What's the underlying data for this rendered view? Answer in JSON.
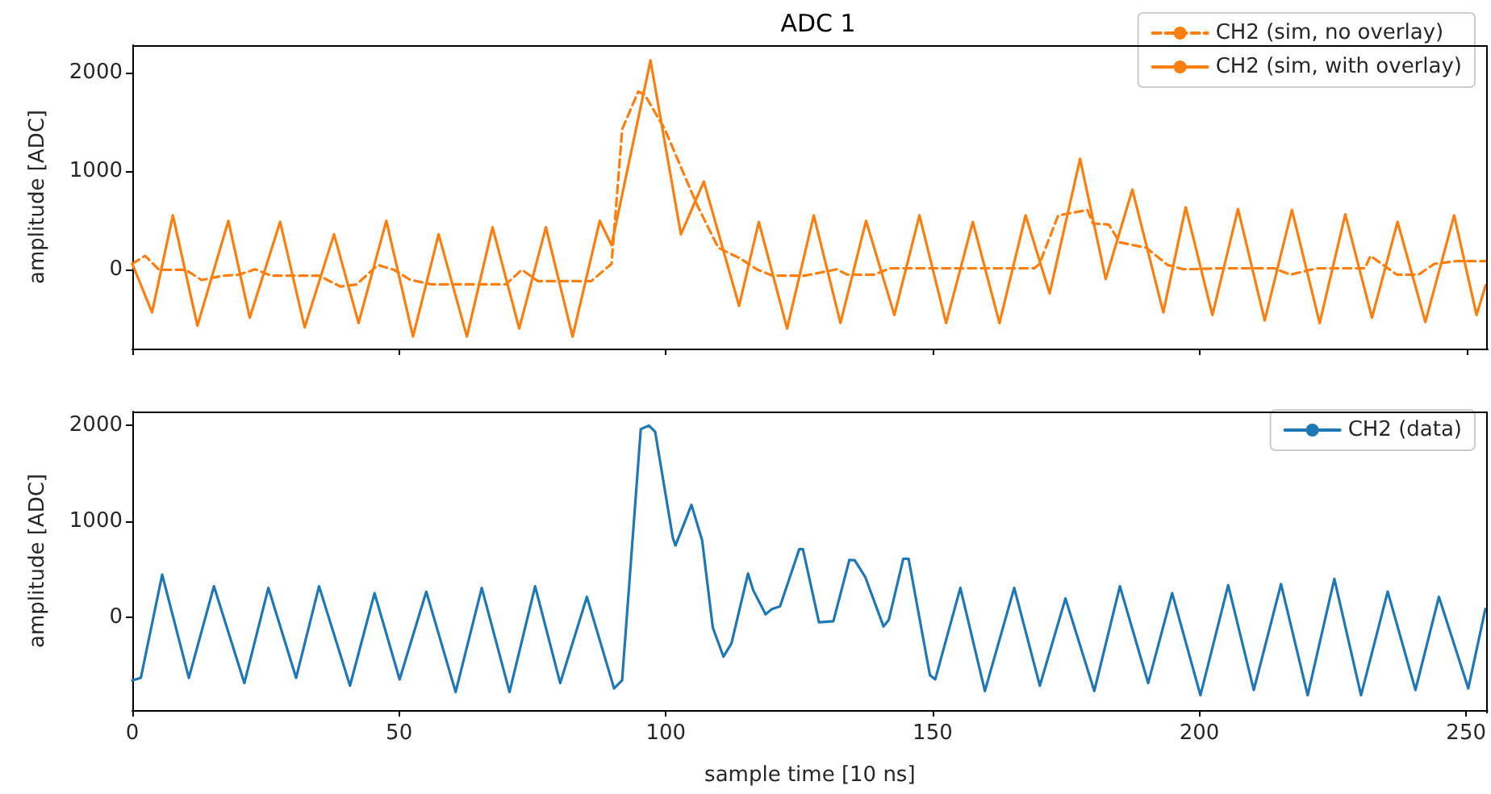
{
  "chart_data": [
    {
      "type": "line",
      "title": "ADC 1",
      "ylabel": "amplitude [ADC]",
      "xlim": [
        0,
        254
      ],
      "xticks": [
        0,
        50,
        100,
        150,
        200,
        250
      ],
      "ylim": [
        -800,
        2280
      ],
      "yticks": [
        0,
        1000,
        2000
      ],
      "tick_labels": "y",
      "legend": "top right",
      "grid": false,
      "series": [
        {
          "name": "CH2 (sim, no overlay)",
          "color": "#ff7f0e",
          "line_style": "dashed",
          "x": [
            0,
            2.4,
            5,
            10,
            13,
            17,
            20,
            23,
            26,
            35,
            39,
            42,
            46,
            49,
            52,
            56,
            70,
            73,
            76,
            86,
            89.8,
            91.8,
            94.8,
            96,
            99.8,
            105.8,
            109.8,
            113.9,
            117,
            120,
            126,
            132,
            134,
            139,
            142,
            169,
            170,
            173.5,
            179,
            180,
            183,
            185,
            190,
            194,
            197,
            204,
            214,
            217,
            222,
            231,
            232,
            237,
            241,
            244,
            248,
            253.6
          ],
          "values": [
            60,
            142,
            0,
            0,
            -104,
            -60,
            -50,
            5,
            -60,
            -60,
            -170,
            -150,
            49,
            0,
            -100,
            -148,
            -148,
            0,
            -115,
            -115,
            60,
            1426,
            1809,
            1780,
            1426,
            661,
            224,
            115,
            5,
            -60,
            -60,
            5,
            -50,
            -50,
            15,
            15,
            60,
            552,
            607,
            470,
            459,
            279,
            224,
            49,
            5,
            15,
            15,
            -50,
            15,
            15,
            142,
            -50,
            -50,
            60,
            87,
            87
          ]
        },
        {
          "name": "CH2 (sim, with overlay)",
          "color": "#ff7f0e",
          "line_style": "solid",
          "x": [
            0,
            3.7,
            7.6,
            12.2,
            18,
            22,
            27.7,
            32.3,
            37.8,
            42.4,
            47.6,
            52.6,
            57.4,
            62.7,
            67.5,
            72.5,
            77.5,
            82.5,
            87.6,
            89.8,
            97.1,
            102.8,
            107.1,
            113.7,
            117.4,
            122.7,
            127.7,
            132.7,
            137.5,
            142.8,
            147.5,
            152.5,
            157.5,
            162.5,
            167.4,
            171.9,
            177.6,
            182.4,
            187.4,
            193.2,
            197.4,
            202.4,
            207.2,
            212.2,
            217.3,
            222.5,
            227.3,
            232.3,
            237.1,
            242.3,
            247.7,
            251.9,
            253.6
          ],
          "values": [
            60,
            -432,
            552,
            -568,
            497,
            -486,
            486,
            -585,
            360,
            -541,
            497,
            -678,
            360,
            -678,
            432,
            -596,
            432,
            -678,
            497,
            250,
            2125,
            360,
            896,
            -366,
            486,
            -596,
            552,
            -541,
            497,
            -459,
            552,
            -541,
            486,
            -541,
            552,
            -240,
            1126,
            -93,
            814,
            -432,
            634,
            -459,
            617,
            -514,
            607,
            -541,
            563,
            -486,
            486,
            -530,
            552,
            -459,
            -158
          ]
        }
      ]
    },
    {
      "type": "line",
      "xlabel": "sample time [10 ns]",
      "ylabel": "amplitude [ADC]",
      "xlim": [
        0,
        254
      ],
      "xticks": [
        0,
        50,
        100,
        150,
        200,
        250
      ],
      "ylim": [
        -970,
        2140
      ],
      "yticks": [
        0,
        1000,
        2000
      ],
      "legend": "top right",
      "grid": false,
      "series": [
        {
          "name": "CH2 (data)",
          "color": "#1f77b4",
          "line_style": "solid",
          "x": [
            0,
            1.6,
            5.6,
            10.6,
            15.3,
            21,
            25.5,
            30.7,
            35,
            40.8,
            45.4,
            50.1,
            55.1,
            60.6,
            65.5,
            70.7,
            75.5,
            80.2,
            85.2,
            90.3,
            91.8,
            95.3,
            96.8,
            98,
            101.3,
            101.8,
            104.8,
            106.8,
            108.8,
            110.8,
            112.3,
            115.4,
            116.4,
            118.7,
            119.9,
            121.4,
            125,
            125.7,
            128.7,
            131.4,
            134.4,
            135.4,
            137.4,
            140.8,
            141.8,
            144.5,
            145.5,
            149.5,
            150.5,
            155.2,
            159.8,
            165.3,
            170.1,
            174.9,
            180.3,
            185.1,
            190.4,
            194.9,
            200.2,
            205.4,
            210.2,
            215.3,
            220.3,
            225.3,
            230.3,
            235.3,
            240.5,
            244.9,
            250.4,
            253.6
          ],
          "values": [
            -661,
            -634,
            441,
            -634,
            320,
            -689,
            303,
            -634,
            320,
            -716,
            248,
            -650,
            264,
            -782,
            303,
            -782,
            320,
            -689,
            209,
            -744,
            -661,
            1956,
            1994,
            1928,
            826,
            744,
            1168,
            799,
            -110,
            -413,
            -275,
            452,
            275,
            28,
            83,
            110,
            705,
            705,
            -55,
            -44,
            595,
            590,
            413,
            -99,
            -28,
            606,
            606,
            -606,
            -650,
            303,
            -771,
            303,
            -716,
            193,
            -771,
            320,
            -689,
            248,
            -815,
            331,
            -760,
            342,
            -815,
            397,
            -815,
            264,
            -760,
            209,
            -744,
            83
          ]
        }
      ]
    }
  ]
}
